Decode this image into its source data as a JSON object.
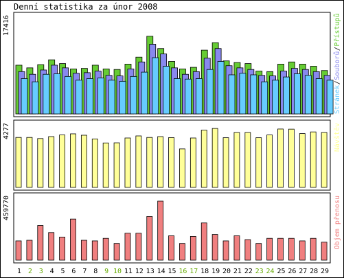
{
  "title": "Denní statistika za únor 2008",
  "colors": {
    "pristupy": "#66cc33",
    "soubory": "#8888ee",
    "stranky": "#66ccff",
    "navstevy": "#ffff99",
    "prenos": "#f07f7f",
    "weekend_label": "#66aa00",
    "weekday_label": "#000000"
  },
  "chart_data": [
    {
      "type": "bar",
      "panel": "top",
      "axis_max_label": "17416",
      "ylim": [
        0,
        17416
      ],
      "categories": [
        "1",
        "2",
        "3",
        "4",
        "5",
        "6",
        "7",
        "8",
        "9",
        "10",
        "11",
        "12",
        "13",
        "14",
        "15",
        "16",
        "17",
        "18",
        "19",
        "20",
        "21",
        "22",
        "23",
        "24",
        "25",
        "26",
        "27",
        "28",
        "29"
      ],
      "weekend_days": [
        "2",
        "3",
        "9",
        "10",
        "16",
        "17",
        "23",
        "24"
      ],
      "series": [
        {
          "name": "Přístupů",
          "values": [
            9100,
            8600,
            9200,
            10100,
            9400,
            8400,
            8500,
            9100,
            8400,
            8300,
            9300,
            10600,
            14500,
            12200,
            9800,
            8400,
            8700,
            11900,
            13300,
            9900,
            9600,
            9400,
            8000,
            7900,
            9300,
            9700,
            9300,
            8900,
            8100
          ]
        },
        {
          "name": "Souborů",
          "values": [
            7900,
            7400,
            8200,
            9100,
            8600,
            7600,
            7700,
            8000,
            7200,
            7100,
            8400,
            9700,
            13000,
            11200,
            8600,
            7400,
            7900,
            10400,
            12200,
            9000,
            8600,
            8300,
            7200,
            7100,
            8000,
            8500,
            8300,
            7900,
            7200
          ]
        },
        {
          "name": "Stránek",
          "values": [
            6600,
            6000,
            7400,
            7500,
            7000,
            6300,
            6600,
            6700,
            6300,
            6100,
            7000,
            7800,
            10500,
            8900,
            6600,
            6500,
            6600,
            8300,
            9800,
            7300,
            7600,
            7300,
            6000,
            6300,
            6900,
            7500,
            7200,
            6600,
            6300
          ]
        }
      ],
      "legend": [
        "Stránek",
        "Souborů",
        "Přístupů"
      ]
    },
    {
      "type": "bar",
      "panel": "middle",
      "axis_max_label": "4277",
      "ylim": [
        0,
        4277
      ],
      "series": [
        {
          "name": "Návštěv",
          "values": [
            3620,
            3620,
            3540,
            3680,
            3800,
            3880,
            3780,
            3510,
            3220,
            3230,
            3580,
            3730,
            3620,
            3680,
            3610,
            2790,
            3580,
            4150,
            4270,
            3600,
            3980,
            3980,
            3600,
            3800,
            4230,
            4220,
            3900,
            4020,
            3980
          ]
        }
      ],
      "legend": [
        "Návštěv"
      ]
    },
    {
      "type": "bar",
      "panel": "bottom",
      "axis_max_label": "459770",
      "ylim": [
        0,
        459770
      ],
      "series": [
        {
          "name": "Objem přenosu",
          "values": [
            150000,
            155000,
            270000,
            215000,
            180000,
            320000,
            155000,
            150000,
            170000,
            130000,
            210000,
            210000,
            340000,
            459770,
            190000,
            130000,
            185000,
            290000,
            200000,
            150000,
            190000,
            160000,
            130000,
            170000,
            170000,
            170000,
            150000,
            170000,
            140000
          ]
        }
      ],
      "legend": [
        "Objem přenosu"
      ]
    }
  ]
}
